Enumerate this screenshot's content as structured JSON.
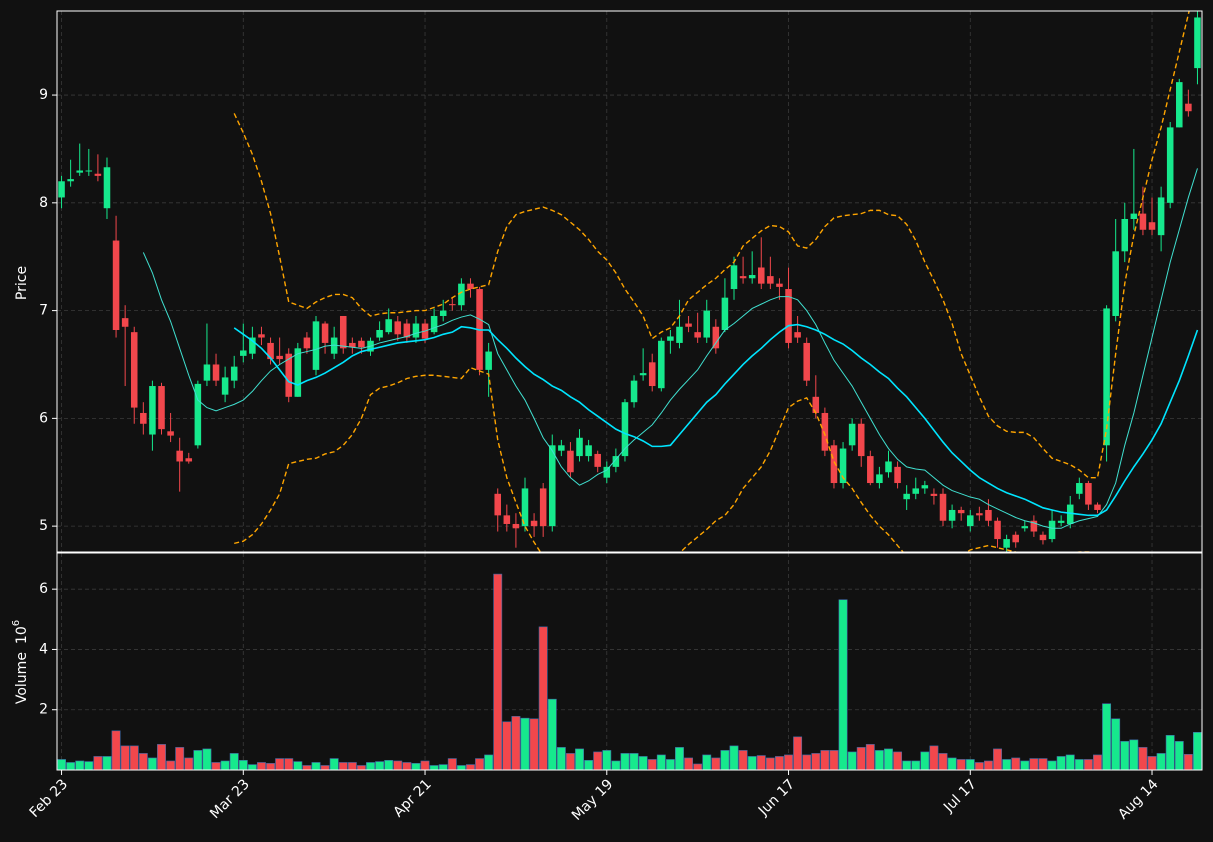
{
  "chart_data": {
    "type": "candlestick",
    "ylabel": "Price",
    "ylim": [
      4.76,
      9.78
    ],
    "yticks": [
      5,
      6,
      7,
      8,
      9
    ],
    "grid": true,
    "up_color": "#16e98d",
    "down_color": "#f2474c",
    "categories": [
      "Feb 23",
      null,
      null,
      null,
      null,
      null,
      null,
      null,
      null,
      null,
      null,
      null,
      null,
      null,
      null,
      null,
      null,
      null,
      null,
      null,
      "Mar 23",
      null,
      null,
      null,
      null,
      null,
      null,
      null,
      null,
      null,
      null,
      null,
      null,
      null,
      null,
      null,
      null,
      null,
      null,
      null,
      "Apr 21",
      null,
      null,
      null,
      null,
      null,
      null,
      null,
      null,
      null,
      null,
      null,
      null,
      null,
      null,
      null,
      null,
      null,
      null,
      null,
      "May 19",
      null,
      null,
      null,
      null,
      null,
      null,
      null,
      null,
      null,
      null,
      null,
      null,
      null,
      null,
      null,
      null,
      null,
      null,
      null,
      "Jun 17",
      null,
      null,
      null,
      null,
      null,
      null,
      null,
      null,
      null,
      null,
      null,
      null,
      null,
      null,
      null,
      null,
      null,
      null,
      null,
      "Jul 17",
      null,
      null,
      null,
      null,
      null,
      null,
      null,
      null,
      null,
      null,
      null,
      null,
      null,
      null,
      null,
      null,
      null,
      null,
      null,
      "Aug 14",
      null,
      null,
      null,
      null,
      null
    ],
    "open": [
      8.05,
      8.2,
      8.28,
      8.3,
      8.27,
      7.95,
      7.65,
      6.93,
      6.8,
      6.05,
      5.85,
      6.3,
      5.88,
      5.7,
      5.63,
      5.75,
      6.35,
      6.5,
      6.22,
      6.35,
      6.58,
      6.6,
      6.78,
      6.7,
      6.58,
      6.6,
      6.2,
      6.75,
      6.45,
      6.88,
      6.6,
      6.95,
      6.7,
      6.72,
      6.62,
      6.75,
      6.8,
      6.9,
      6.88,
      6.75,
      6.88,
      6.8,
      6.95,
      7.06,
      7.05,
      7.25,
      7.2,
      6.45,
      5.3,
      5.1,
      5.02,
      5.0,
      5.05,
      5.35,
      5.0,
      5.7,
      5.7,
      5.65,
      5.65,
      5.67,
      5.45,
      5.55,
      5.65,
      6.15,
      6.4,
      6.52,
      6.28,
      6.72,
      6.7,
      6.88,
      6.8,
      6.75,
      6.85,
      6.82,
      7.2,
      7.32,
      7.3,
      7.4,
      7.32,
      7.25,
      7.2,
      6.8,
      6.7,
      6.2,
      6.05,
      5.75,
      5.4,
      5.75,
      5.95,
      5.65,
      5.4,
      5.5,
      5.55,
      5.25,
      5.3,
      5.35,
      5.3,
      5.3,
      5.05,
      5.15,
      5.0,
      5.12,
      5.15,
      5.05,
      4.8,
      4.92,
      4.98,
      5.05,
      4.92,
      4.88,
      5.03,
      5.02,
      5.3,
      5.4,
      5.2,
      5.75,
      6.95,
      7.55,
      7.85,
      7.9,
      7.82,
      7.7,
      8.0,
      8.7,
      8.92,
      9.25
    ],
    "high": [
      8.25,
      8.4,
      8.55,
      8.5,
      8.45,
      8.42,
      7.88,
      7.05,
      6.85,
      6.15,
      6.35,
      6.33,
      6.05,
      5.82,
      5.68,
      6.35,
      6.88,
      6.6,
      6.48,
      6.58,
      6.88,
      6.85,
      6.85,
      6.75,
      6.75,
      6.65,
      6.7,
      6.8,
      6.95,
      6.9,
      6.85,
      6.95,
      6.75,
      6.75,
      6.75,
      6.9,
      7.02,
      6.95,
      6.92,
      6.95,
      6.92,
      7.02,
      7.1,
      7.12,
      7.3,
      7.3,
      7.22,
      6.7,
      5.35,
      5.2,
      5.12,
      5.45,
      5.12,
      5.4,
      5.85,
      5.8,
      5.78,
      5.9,
      5.8,
      5.7,
      5.6,
      5.72,
      6.18,
      6.4,
      6.65,
      6.6,
      6.75,
      6.82,
      7.1,
      6.95,
      6.98,
      7.1,
      6.92,
      7.3,
      7.5,
      7.5,
      7.55,
      7.68,
      7.5,
      7.3,
      7.4,
      6.95,
      6.75,
      6.4,
      6.1,
      5.8,
      5.78,
      6.0,
      6.0,
      5.7,
      5.55,
      5.7,
      5.6,
      5.38,
      5.45,
      5.42,
      5.35,
      5.35,
      5.2,
      5.18,
      5.15,
      5.18,
      5.25,
      5.08,
      4.92,
      4.95,
      5.05,
      5.1,
      4.95,
      5.15,
      5.1,
      5.28,
      5.45,
      5.42,
      5.22,
      7.05,
      7.85,
      8.0,
      8.5,
      8.15,
      8.05,
      8.15,
      8.75,
      9.15,
      9.05,
      9.8
    ],
    "low": [
      7.95,
      8.15,
      8.25,
      8.25,
      8.2,
      7.85,
      6.75,
      6.3,
      5.95,
      5.85,
      5.7,
      5.85,
      5.78,
      5.32,
      5.58,
      5.72,
      6.3,
      6.3,
      6.15,
      6.28,
      6.52,
      6.55,
      6.68,
      6.5,
      6.5,
      6.15,
      6.2,
      6.6,
      6.4,
      6.6,
      6.55,
      6.6,
      6.6,
      6.6,
      6.58,
      6.72,
      6.78,
      6.72,
      6.7,
      6.7,
      6.7,
      6.78,
      6.9,
      7.0,
      7.0,
      7.12,
      6.4,
      6.2,
      4.95,
      4.95,
      4.8,
      4.95,
      4.9,
      4.9,
      4.95,
      5.65,
      5.45,
      5.6,
      5.6,
      5.5,
      5.4,
      5.5,
      5.6,
      6.1,
      6.35,
      6.25,
      6.25,
      6.6,
      6.65,
      6.8,
      6.7,
      6.7,
      6.6,
      6.8,
      7.1,
      7.25,
      7.25,
      7.2,
      7.2,
      7.1,
      6.65,
      6.7,
      6.3,
      6.0,
      5.65,
      5.35,
      5.35,
      5.7,
      5.55,
      5.38,
      5.35,
      5.45,
      5.35,
      5.15,
      5.25,
      5.3,
      5.2,
      5.0,
      4.98,
      5.05,
      4.95,
      5.05,
      5.0,
      4.8,
      4.76,
      4.8,
      4.95,
      4.9,
      4.83,
      4.85,
      5.0,
      4.98,
      5.25,
      5.15,
      5.12,
      5.6,
      6.9,
      7.45,
      7.75,
      7.7,
      7.7,
      7.55,
      7.95,
      8.7,
      8.8,
      9.1
    ],
    "close": [
      8.2,
      8.22,
      8.3,
      8.3,
      8.25,
      8.33,
      6.82,
      6.85,
      6.1,
      5.95,
      6.3,
      5.9,
      5.84,
      5.6,
      5.6,
      6.32,
      6.5,
      6.35,
      6.38,
      6.48,
      6.63,
      6.75,
      6.75,
      6.55,
      6.55,
      6.2,
      6.65,
      6.65,
      6.9,
      6.7,
      6.75,
      6.65,
      6.66,
      6.66,
      6.72,
      6.82,
      6.92,
      6.78,
      6.75,
      6.88,
      6.74,
      6.95,
      7.0,
      7.05,
      7.25,
      7.2,
      6.45,
      6.62,
      5.1,
      5.02,
      4.98,
      5.35,
      5.0,
      5.0,
      5.75,
      5.75,
      5.5,
      5.82,
      5.75,
      5.55,
      5.55,
      5.65,
      6.15,
      6.35,
      6.42,
      6.3,
      6.72,
      6.76,
      6.85,
      6.85,
      6.75,
      7.0,
      6.65,
      7.12,
      7.42,
      7.3,
      7.33,
      7.25,
      7.25,
      7.22,
      6.7,
      6.75,
      6.35,
      6.05,
      5.7,
      5.4,
      5.72,
      5.95,
      5.65,
      5.4,
      5.48,
      5.6,
      5.4,
      5.3,
      5.35,
      5.38,
      5.28,
      5.05,
      5.15,
      5.12,
      5.1,
      5.1,
      5.05,
      4.88,
      4.88,
      4.85,
      5.0,
      4.95,
      4.87,
      5.05,
      5.05,
      5.2,
      5.4,
      5.2,
      5.15,
      7.02,
      7.55,
      7.85,
      7.9,
      7.75,
      7.75,
      8.05,
      8.7,
      9.12,
      8.85,
      9.72
    ],
    "overlays": [
      {
        "color": "#40e0d0",
        "linewidth": 1,
        "dashed": false,
        "values": [
          null,
          null,
          null,
          null,
          null,
          null,
          null,
          null,
          null,
          7.54,
          7.35,
          7.1,
          6.9,
          6.65,
          6.4,
          6.17,
          6.1,
          6.07,
          6.1,
          6.13,
          6.17,
          6.25,
          6.35,
          6.44,
          6.5,
          6.55,
          6.6,
          6.62,
          6.64,
          6.67,
          6.68,
          6.67,
          6.66,
          6.65,
          6.67,
          6.7,
          6.72,
          6.74,
          6.76,
          6.79,
          6.81,
          6.84,
          6.87,
          6.91,
          6.94,
          6.96,
          6.92,
          6.87,
          6.6,
          6.45,
          6.3,
          6.17,
          6.0,
          5.82,
          5.7,
          5.55,
          5.45,
          5.38,
          5.42,
          5.48,
          5.52,
          5.62,
          5.72,
          5.8,
          5.87,
          5.94,
          6.05,
          6.17,
          6.27,
          6.36,
          6.45,
          6.58,
          6.7,
          6.82,
          6.88,
          6.95,
          7.02,
          7.06,
          7.1,
          7.13,
          7.13,
          7.1,
          7.0,
          6.87,
          6.7,
          6.54,
          6.42,
          6.3,
          6.15,
          6.0,
          5.85,
          5.72,
          5.62,
          5.55,
          5.53,
          5.52,
          5.45,
          5.38,
          5.33,
          5.3,
          5.27,
          5.25,
          5.2,
          5.16,
          5.12,
          5.08,
          5.05,
          5.03,
          5.0,
          4.98,
          4.98,
          5.02,
          5.05,
          5.07,
          5.09,
          5.2,
          5.4,
          5.75,
          6.05,
          6.4,
          6.75,
          7.1,
          7.45,
          7.75,
          8.05,
          8.32
        ]
      },
      {
        "color": "#00e5ff",
        "linewidth": 1.6,
        "dashed": false,
        "values": [
          null,
          null,
          null,
          null,
          null,
          null,
          null,
          null,
          null,
          null,
          null,
          null,
          null,
          null,
          null,
          null,
          null,
          null,
          null,
          6.84,
          6.78,
          6.72,
          6.65,
          6.56,
          6.45,
          6.34,
          6.31,
          6.35,
          6.38,
          6.42,
          6.47,
          6.52,
          6.58,
          6.62,
          6.64,
          6.66,
          6.68,
          6.7,
          6.71,
          6.72,
          6.73,
          6.75,
          6.78,
          6.8,
          6.85,
          6.84,
          6.82,
          6.82,
          6.73,
          6.65,
          6.56,
          6.48,
          6.41,
          6.36,
          6.3,
          6.26,
          6.2,
          6.15,
          6.08,
          6.02,
          5.96,
          5.9,
          5.86,
          5.83,
          5.79,
          5.74,
          5.74,
          5.75,
          5.85,
          5.95,
          6.05,
          6.15,
          6.22,
          6.32,
          6.41,
          6.5,
          6.58,
          6.65,
          6.73,
          6.8,
          6.86,
          6.87,
          6.85,
          6.82,
          6.78,
          6.73,
          6.69,
          6.63,
          6.56,
          6.5,
          6.43,
          6.37,
          6.28,
          6.2,
          6.1,
          6.0,
          5.89,
          5.78,
          5.68,
          5.6,
          5.52,
          5.45,
          5.4,
          5.35,
          5.31,
          5.28,
          5.25,
          5.21,
          5.17,
          5.15,
          5.13,
          5.12,
          5.11,
          5.1,
          5.1,
          5.15,
          5.28,
          5.42,
          5.55,
          5.67,
          5.8,
          5.95,
          6.15,
          6.35,
          6.58,
          6.82
        ]
      },
      {
        "color": "#ffa500",
        "linewidth": 1.4,
        "dashed": true,
        "values": [
          null,
          null,
          null,
          null,
          null,
          null,
          null,
          null,
          null,
          null,
          null,
          null,
          null,
          null,
          null,
          null,
          null,
          null,
          null,
          8.83,
          8.65,
          8.45,
          8.2,
          7.9,
          7.5,
          7.08,
          7.05,
          7.02,
          7.08,
          7.12,
          7.15,
          7.15,
          7.12,
          7.02,
          6.95,
          6.97,
          6.98,
          6.98,
          6.99,
          7.0,
          7.0,
          7.03,
          7.06,
          7.12,
          7.17,
          7.2,
          7.22,
          7.24,
          7.55,
          7.78,
          7.89,
          7.92,
          7.94,
          7.96,
          7.93,
          7.89,
          7.82,
          7.75,
          7.66,
          7.55,
          7.47,
          7.35,
          7.2,
          7.08,
          6.95,
          6.74,
          6.8,
          6.84,
          6.95,
          7.1,
          7.17,
          7.24,
          7.3,
          7.38,
          7.45,
          7.6,
          7.67,
          7.74,
          7.79,
          7.78,
          7.73,
          7.6,
          7.58,
          7.66,
          7.78,
          7.86,
          7.88,
          7.89,
          7.9,
          7.93,
          7.93,
          7.89,
          7.88,
          7.8,
          7.65,
          7.45,
          7.28,
          7.1,
          6.88,
          6.6,
          6.4,
          6.2,
          6.02,
          5.93,
          5.88,
          5.87,
          5.87,
          5.82,
          5.72,
          5.63,
          5.6,
          5.57,
          5.52,
          5.45,
          5.45,
          5.9,
          6.6,
          7.25,
          7.7,
          8.05,
          8.4,
          8.7,
          9.05,
          9.4,
          9.75,
          10.1
        ]
      },
      {
        "color": "#ffa500",
        "linewidth": 1.4,
        "dashed": true,
        "values": [
          null,
          null,
          null,
          null,
          null,
          null,
          null,
          null,
          null,
          null,
          null,
          null,
          null,
          null,
          null,
          null,
          null,
          null,
          null,
          4.84,
          4.86,
          4.92,
          5.02,
          5.15,
          5.3,
          5.58,
          5.6,
          5.62,
          5.63,
          5.67,
          5.69,
          5.75,
          5.85,
          6.0,
          6.22,
          6.28,
          6.3,
          6.33,
          6.37,
          6.39,
          6.4,
          6.4,
          6.39,
          6.38,
          6.37,
          6.47,
          6.44,
          6.41,
          5.8,
          5.45,
          5.22,
          5.0,
          4.85,
          4.72,
          4.6,
          4.5,
          4.42,
          4.35,
          4.3,
          4.3,
          4.35,
          4.4,
          4.45,
          4.5,
          4.58,
          4.62,
          4.68,
          4.7,
          4.75,
          4.83,
          4.9,
          4.97,
          5.05,
          5.1,
          5.2,
          5.35,
          5.45,
          5.55,
          5.7,
          5.9,
          6.1,
          6.16,
          6.19,
          6.05,
          5.85,
          5.6,
          5.45,
          5.35,
          5.22,
          5.1,
          5.0,
          4.92,
          4.82,
          4.72,
          4.65,
          4.6,
          4.58,
          4.6,
          4.65,
          4.72,
          4.78,
          4.8,
          4.82,
          4.8,
          4.78,
          4.76,
          4.72,
          4.7,
          4.7,
          4.71,
          4.74,
          4.75,
          4.76,
          4.76,
          4.75,
          4.4,
          4.0,
          3.6,
          3.4,
          3.3,
          3.2,
          3.2,
          3.25,
          3.3,
          3.4,
          3.5
        ]
      }
    ],
    "volume": {
      "ylabel": "Volume",
      "scale_base": "10",
      "scale_exponent": "6",
      "ylim": [
        0,
        7.2
      ],
      "yticks": [
        2,
        4,
        6
      ],
      "values": [
        0.35,
        0.25,
        0.3,
        0.28,
        0.45,
        0.45,
        1.3,
        0.8,
        0.8,
        0.55,
        0.4,
        0.85,
        0.3,
        0.75,
        0.4,
        0.65,
        0.7,
        0.25,
        0.3,
        0.55,
        0.32,
        0.18,
        0.25,
        0.22,
        0.38,
        0.38,
        0.28,
        0.15,
        0.25,
        0.15,
        0.38,
        0.25,
        0.25,
        0.15,
        0.25,
        0.28,
        0.32,
        0.3,
        0.25,
        0.22,
        0.3,
        0.15,
        0.18,
        0.38,
        0.15,
        0.18,
        0.38,
        0.5,
        6.5,
        1.6,
        1.78,
        1.72,
        1.7,
        4.75,
        2.35,
        0.75,
        0.55,
        0.7,
        0.32,
        0.6,
        0.65,
        0.3,
        0.55,
        0.55,
        0.45,
        0.35,
        0.5,
        0.35,
        0.75,
        0.4,
        0.2,
        0.5,
        0.4,
        0.65,
        0.8,
        0.65,
        0.45,
        0.48,
        0.4,
        0.45,
        0.5,
        1.1,
        0.5,
        0.55,
        0.65,
        0.65,
        5.65,
        0.6,
        0.75,
        0.85,
        0.65,
        0.7,
        0.6,
        0.3,
        0.3,
        0.6,
        0.8,
        0.55,
        0.4,
        0.35,
        0.35,
        0.25,
        0.3,
        0.7,
        0.35,
        0.4,
        0.3,
        0.38,
        0.38,
        0.3,
        0.45,
        0.5,
        0.35,
        0.35,
        0.5,
        2.2,
        1.7,
        0.95,
        1.0,
        0.75,
        0.45,
        0.55,
        1.15,
        0.95,
        0.52,
        1.25
      ]
    }
  }
}
